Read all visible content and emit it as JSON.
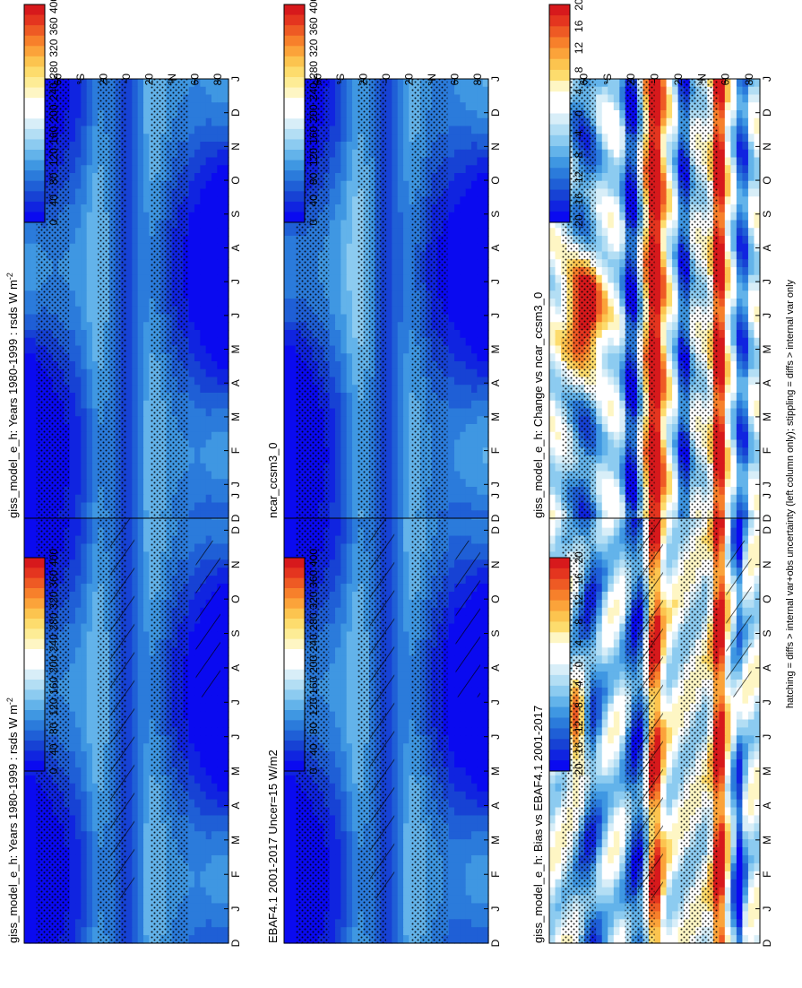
{
  "figure": {
    "footnote": "hatching = diffs > internal var+obs uncertainty (left column only); stippling = diffs > internal var only"
  },
  "colorbar_abs": {
    "ticks": [
      "400",
      "360",
      "320",
      "280",
      "240",
      "200",
      "160",
      "120",
      "80",
      "40",
      "0"
    ],
    "colors": [
      "#d7191c",
      "#e4351f",
      "#ee5a24",
      "#f7802b",
      "#fba33a",
      "#fcc44f",
      "#fddc6d",
      "#fdec95",
      "#fef6c4",
      "#ffffff",
      "#ffffff",
      "#d8eef8",
      "#b3def4",
      "#8ccbf0",
      "#63b3ea",
      "#3f97e2",
      "#2b7bdb",
      "#1f5fd6",
      "#1742d4",
      "#1024e0",
      "#0a0af0"
    ]
  },
  "colorbar_diff": {
    "ticks": [
      "20",
      "16",
      "12",
      "8",
      "4",
      "0",
      "-4",
      "-8",
      "-12",
      "-16",
      "-20"
    ],
    "colors": [
      "#d7191c",
      "#e4351f",
      "#ee5a24",
      "#f7802b",
      "#fba33a",
      "#fcc44f",
      "#fddc6d",
      "#fef6c4",
      "#ffffff",
      "#ffffff",
      "#d8eef8",
      "#b3def4",
      "#8ccbf0",
      "#63b3ea",
      "#3f97e2",
      "#2b7bdb",
      "#1f5fd6",
      "#1742d4",
      "#1024e0",
      "#0a0af0"
    ]
  },
  "axes": {
    "months": [
      "D",
      "J",
      "F",
      "M",
      "A",
      "M",
      "J",
      "J",
      "A",
      "S",
      "O",
      "N",
      "D",
      "J"
    ],
    "lat_ticks": [
      "80",
      "60",
      "°N",
      "20",
      "0",
      "20",
      "°S",
      "60",
      "80"
    ]
  },
  "chart_data": [
    {
      "type": "heatmap",
      "id": "p1",
      "title": "giss_model_e_h: Years 1980-1999 : rsds W m",
      "title_sup": "-2",
      "variable": "rsds",
      "units": "W m-2",
      "kind": "absolute",
      "scale": [
        0,
        400
      ],
      "hatching": true
    },
    {
      "type": "heatmap",
      "id": "p2",
      "title": "EBAF4.1 2001-2017 Uncer=15 W/m2",
      "title_sup": "",
      "variable": "rsds",
      "units": "W/m2",
      "kind": "absolute",
      "scale": [
        0,
        400
      ],
      "hatching": true
    },
    {
      "type": "heatmap",
      "id": "p3",
      "title": "giss_model_e_h: Bias vs EBAF4.1 2001-2017",
      "title_sup": "",
      "variable": "rsds",
      "kind": "difference",
      "scale": [
        -20,
        20
      ],
      "hatching": true
    },
    {
      "type": "heatmap",
      "id": "p4",
      "title": "giss_model_e_h: Years 1980-1999 : rsds W m",
      "title_sup": "-2",
      "variable": "rsds",
      "units": "W m-2",
      "kind": "absolute",
      "scale": [
        0,
        400
      ],
      "hatching": false
    },
    {
      "type": "heatmap",
      "id": "p5",
      "title": "ncar_ccsm3_0",
      "title_sup": "",
      "variable": "rsds",
      "kind": "absolute",
      "scale": [
        0,
        400
      ],
      "hatching": false
    },
    {
      "type": "heatmap",
      "id": "p6",
      "title": "giss_model_e_h: Change vs ncar_ccsm3_0",
      "title_sup": "",
      "variable": "rsds",
      "kind": "difference",
      "scale": [
        -20,
        20
      ],
      "hatching": false
    }
  ]
}
